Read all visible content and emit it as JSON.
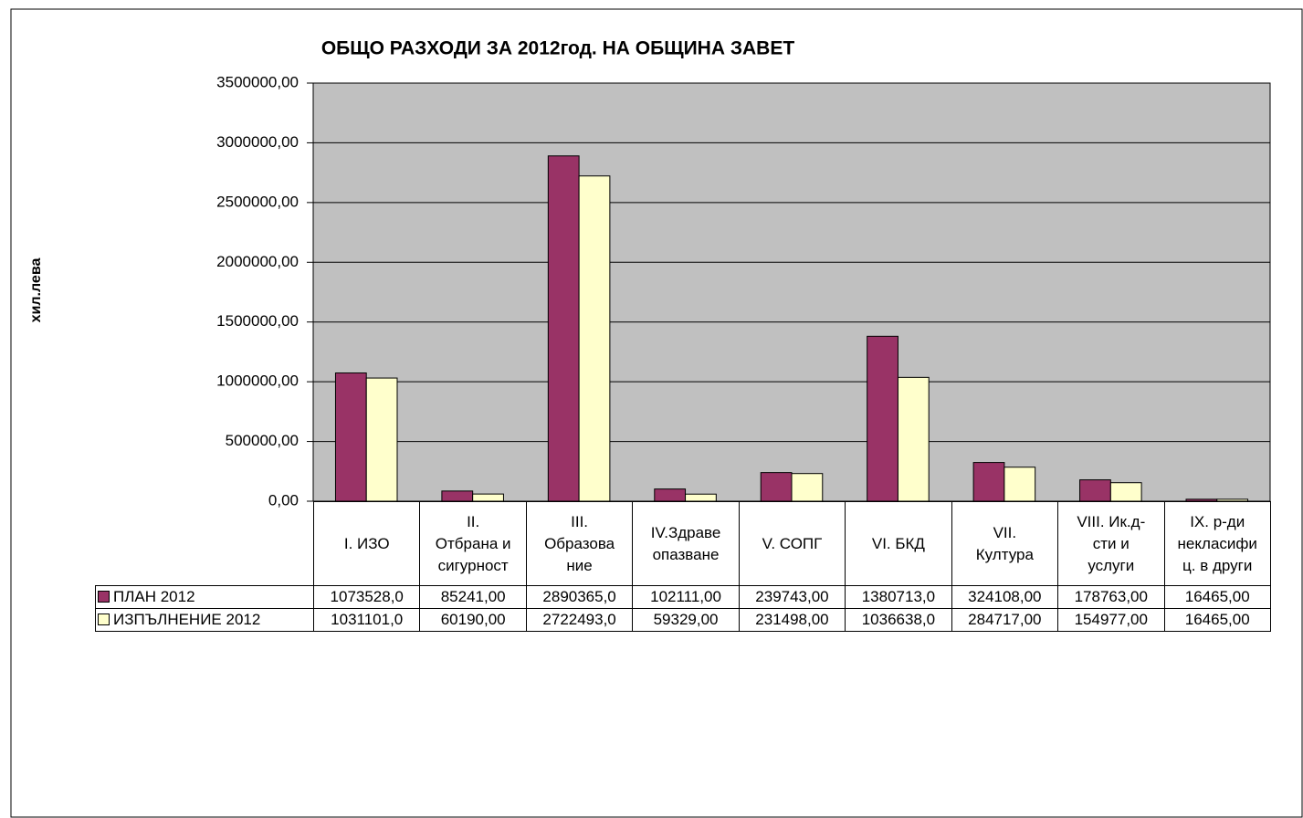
{
  "chart_data": {
    "type": "bar",
    "title": "ОБЩО РАЗХОДИ ЗА 2012год. НА ОБЩИНА ЗАВЕТ",
    "y_label": "хил.лева",
    "categories": [
      "I. ИЗО",
      "II.\nОтбрана и\nсигурност",
      "III.\nОбразова\nние",
      "IV.Здраве\nопазване",
      "V. СОПГ",
      "VI. БКД",
      "VII.\nКултура",
      "VIII. Ик.д-\nсти и\nуслуги",
      "IX. р-ди\nнекласифи\nц. в други"
    ],
    "series": [
      {
        "name": "ПЛАН 2012",
        "color": "#993366",
        "values": [
          1073528,
          85241,
          2890365,
          102111,
          239743,
          1380713,
          324108,
          178763,
          16465
        ],
        "value_labels": [
          "1073528,0",
          "85241,00",
          "2890365,0",
          "102111,00",
          "239743,00",
          "1380713,0",
          "324108,00",
          "178763,00",
          "16465,00"
        ]
      },
      {
        "name": "ИЗПЪЛНЕНИЕ 2012",
        "color": "#ffffcc",
        "values": [
          1031101,
          60190,
          2722493,
          59329,
          231498,
          1036638,
          284717,
          154977,
          16465
        ],
        "value_labels": [
          "1031101,0",
          "60190,00",
          "2722493,0",
          "59329,00",
          "231498,00",
          "1036638,0",
          "284717,00",
          "154977,00",
          "16465,00"
        ]
      }
    ],
    "ylim": [
      0,
      3500000
    ],
    "yticks": [
      {
        "value": 0,
        "label": "0,00"
      },
      {
        "value": 500000,
        "label": "500000,00"
      },
      {
        "value": 1000000,
        "label": "1000000,00"
      },
      {
        "value": 1500000,
        "label": "1500000,00"
      },
      {
        "value": 2000000,
        "label": "2000000,00"
      },
      {
        "value": 2500000,
        "label": "2500000,00"
      },
      {
        "value": 3000000,
        "label": "3000000,00"
      },
      {
        "value": 3500000,
        "label": "3500000,00"
      }
    ],
    "grid": true,
    "plot_background": "#c0c0c0"
  }
}
